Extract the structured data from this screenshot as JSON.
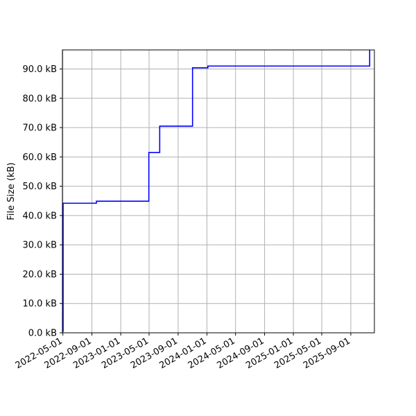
{
  "chart_data": {
    "type": "line",
    "title": "",
    "xlabel": "",
    "ylabel": "File Size (kB)",
    "x_scale": "date",
    "xlim": [
      "2022-04-29",
      "2025-12-10"
    ],
    "ylim": [
      0.0,
      96.5
    ],
    "grid": true,
    "legend": "none",
    "step": "post",
    "line_color": "#0000ff",
    "x_ticks": [
      "2022-05-01",
      "2022-09-01",
      "2023-01-01",
      "2023-05-01",
      "2023-09-01",
      "2024-01-01",
      "2024-05-01",
      "2024-09-01",
      "2025-01-01",
      "2025-05-01",
      "2025-09-01"
    ],
    "y_ticks": [
      0,
      10,
      20,
      30,
      40,
      50,
      60,
      70,
      80,
      90
    ],
    "y_tick_labels": [
      "0.0 kB",
      "10.0 kB",
      "20.0 kB",
      "30.0 kB",
      "40.0 kB",
      "50.0 kB",
      "60.0 kB",
      "70.0 kB",
      "80.0 kB",
      "90.0 kB"
    ],
    "series": [
      {
        "points": [
          {
            "x": "2022-04-29",
            "y": 0.5
          },
          {
            "x": "2022-05-02",
            "y": 44.2
          },
          {
            "x": "2022-09-20",
            "y": 44.9
          },
          {
            "x": "2023-04-30",
            "y": 61.5
          },
          {
            "x": "2023-06-15",
            "y": 70.5
          },
          {
            "x": "2023-11-01",
            "y": 90.4
          },
          {
            "x": "2024-01-05",
            "y": 91.0
          },
          {
            "x": "2025-11-20",
            "y": 96.5
          }
        ]
      }
    ]
  }
}
